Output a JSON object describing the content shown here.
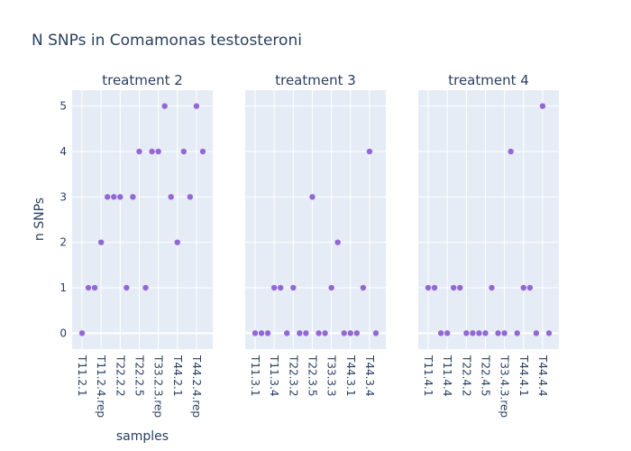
{
  "chart_data": {
    "type": "scatter",
    "title": "N SNPs in Comamonas testosteroni",
    "xlabel": "samples",
    "ylabel": "n SNPs",
    "ylim": [
      -0.35,
      5.35
    ],
    "yticks": [
      0,
      1,
      2,
      3,
      4,
      5
    ],
    "grid": true,
    "marker_color": "#9467d6",
    "background_color": "#e5ecf6",
    "panels": [
      {
        "name": "treatment 2",
        "tick_labels": [
          "T11.2.1",
          "T11.2.4.rep",
          "T22.2.2",
          "T22.2.5",
          "T33.2.3.rep",
          "T44.2.1",
          "T44.2.4.rep"
        ],
        "tick_positions": [
          0,
          3,
          6,
          9,
          12,
          15,
          18
        ],
        "x_count": 20,
        "values": [
          0,
          1,
          1,
          2,
          3,
          3,
          3,
          1,
          3,
          4,
          1,
          4,
          4,
          5,
          3,
          2,
          4,
          3,
          5,
          4
        ]
      },
      {
        "name": "treatment 3",
        "tick_labels": [
          "T11.3.1",
          "T11.3.4",
          "T22.3.2",
          "T22.3.5",
          "T33.3.3",
          "T44.3.1",
          "T44.3.4"
        ],
        "tick_positions": [
          0,
          3,
          6,
          9,
          12,
          15,
          18
        ],
        "x_count": 20,
        "values": [
          0,
          0,
          0,
          1,
          1,
          0,
          1,
          0,
          0,
          3,
          0,
          0,
          1,
          2,
          0,
          0,
          0,
          1,
          4,
          0
        ]
      },
      {
        "name": "treatment 4",
        "tick_labels": [
          "T11.4.1",
          "T11.4.4",
          "T22.4.2",
          "T22.4.5",
          "T33.4.3.rep",
          "T44.4.1",
          "T44.4.4"
        ],
        "tick_positions": [
          0,
          3,
          6,
          9,
          12,
          15,
          18
        ],
        "x_count": 20,
        "values": [
          1,
          1,
          0,
          0,
          1,
          1,
          0,
          0,
          0,
          0,
          1,
          0,
          0,
          4,
          0,
          1,
          1,
          0,
          5,
          0
        ]
      }
    ]
  }
}
